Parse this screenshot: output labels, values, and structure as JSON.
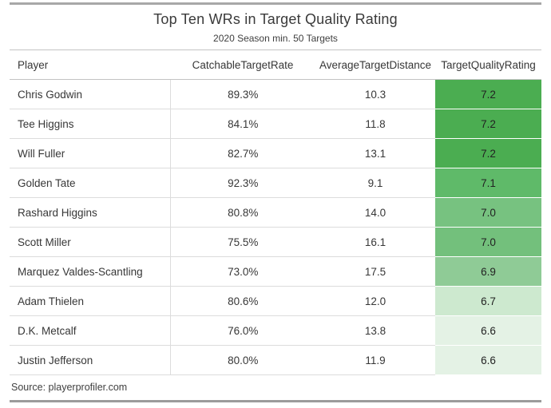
{
  "colors": {
    "frame_border": "#a8a8a8",
    "header_line": "#c3c3c3",
    "row_line": "#dcdcdc",
    "text": "#3b3b3b",
    "rating_scale_high": "#4bad51",
    "rating_scale_low": "#e4f2e5"
  },
  "chart_data": {
    "type": "table",
    "title": "Top Ten WRs in Target Quality Rating",
    "subtitle": "2020 Season min. 50 Targets",
    "source": "Source: playerprofiler.com",
    "columns": [
      "Player",
      "CatchableTargetRate",
      "AverageTargetDistance",
      "TargetQualityRating"
    ],
    "rows": [
      {
        "player": "Chris Godwin",
        "catchable_target_rate": "89.3%",
        "average_target_distance": "10.3",
        "target_quality_rating": "7.2",
        "rating_color": "#4bad51"
      },
      {
        "player": "Tee Higgins",
        "catchable_target_rate": "84.1%",
        "average_target_distance": "11.8",
        "target_quality_rating": "7.2",
        "rating_color": "#4bad51"
      },
      {
        "player": "Will Fuller",
        "catchable_target_rate": "82.7%",
        "average_target_distance": "13.1",
        "target_quality_rating": "7.2",
        "rating_color": "#4bad51"
      },
      {
        "player": "Golden Tate",
        "catchable_target_rate": "92.3%",
        "average_target_distance": "9.1",
        "target_quality_rating": "7.1",
        "rating_color": "#5fba69"
      },
      {
        "player": "Rashard Higgins",
        "catchable_target_rate": "80.8%",
        "average_target_distance": "14.0",
        "target_quality_rating": "7.0",
        "rating_color": "#77c280"
      },
      {
        "player": "Scott Miller",
        "catchable_target_rate": "75.5%",
        "average_target_distance": "16.1",
        "target_quality_rating": "7.0",
        "rating_color": "#73c07c"
      },
      {
        "player": "Marquez Valdes-Scantling",
        "catchable_target_rate": "73.0%",
        "average_target_distance": "17.5",
        "target_quality_rating": "6.9",
        "rating_color": "#8fcb96"
      },
      {
        "player": "Adam Thielen",
        "catchable_target_rate": "80.6%",
        "average_target_distance": "12.0",
        "target_quality_rating": "6.7",
        "rating_color": "#cde9cf"
      },
      {
        "player": "D.K. Metcalf",
        "catchable_target_rate": "76.0%",
        "average_target_distance": "13.8",
        "target_quality_rating": "6.6",
        "rating_color": "#e4f2e5"
      },
      {
        "player": "Justin Jefferson",
        "catchable_target_rate": "80.0%",
        "average_target_distance": "11.9",
        "target_quality_rating": "6.6",
        "rating_color": "#e4f2e5"
      }
    ]
  }
}
